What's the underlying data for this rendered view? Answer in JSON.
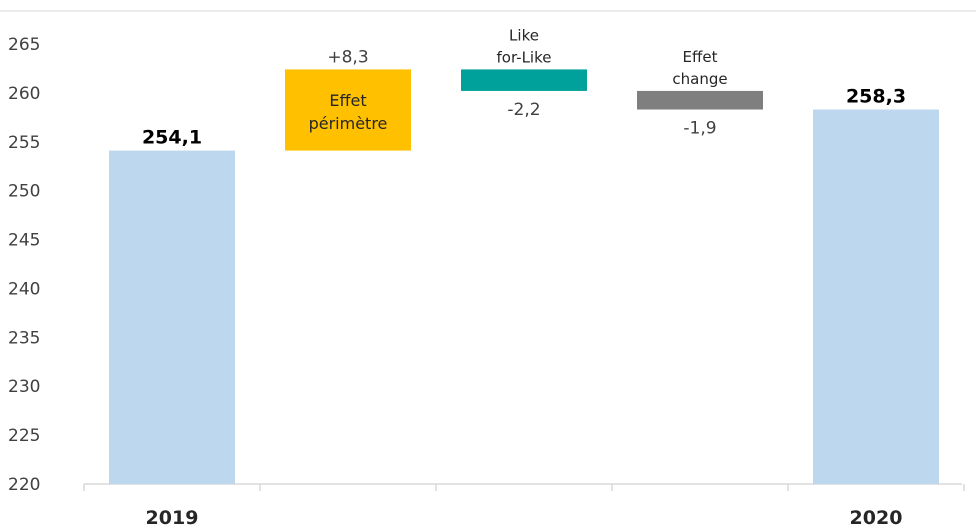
{
  "chart_data": {
    "type": "waterfall",
    "ylim": [
      220,
      265
    ],
    "yticks": [
      220,
      225,
      230,
      235,
      240,
      245,
      250,
      255,
      260,
      265
    ],
    "categories": [
      "2019",
      "",
      "",
      "",
      "2020"
    ],
    "steps": [
      {
        "kind": "total",
        "value": 254.1,
        "label": "254,1",
        "color": "#bdd7ee"
      },
      {
        "kind": "delta",
        "value": 8.3,
        "label": "+8,3",
        "name": [
          "Effet",
          "périmètre"
        ],
        "color": "#ffc000"
      },
      {
        "kind": "delta",
        "value": -2.2,
        "label": "-2,2",
        "name": [
          "Like",
          "for-Like"
        ],
        "color": "#00a19a"
      },
      {
        "kind": "delta",
        "value": -1.9,
        "label": "-1,9",
        "name": [
          "Effet",
          "change"
        ],
        "color": "#7f7f7f"
      },
      {
        "kind": "total",
        "value": 258.3,
        "label": "258,3",
        "color": "#bdd7ee"
      }
    ]
  }
}
